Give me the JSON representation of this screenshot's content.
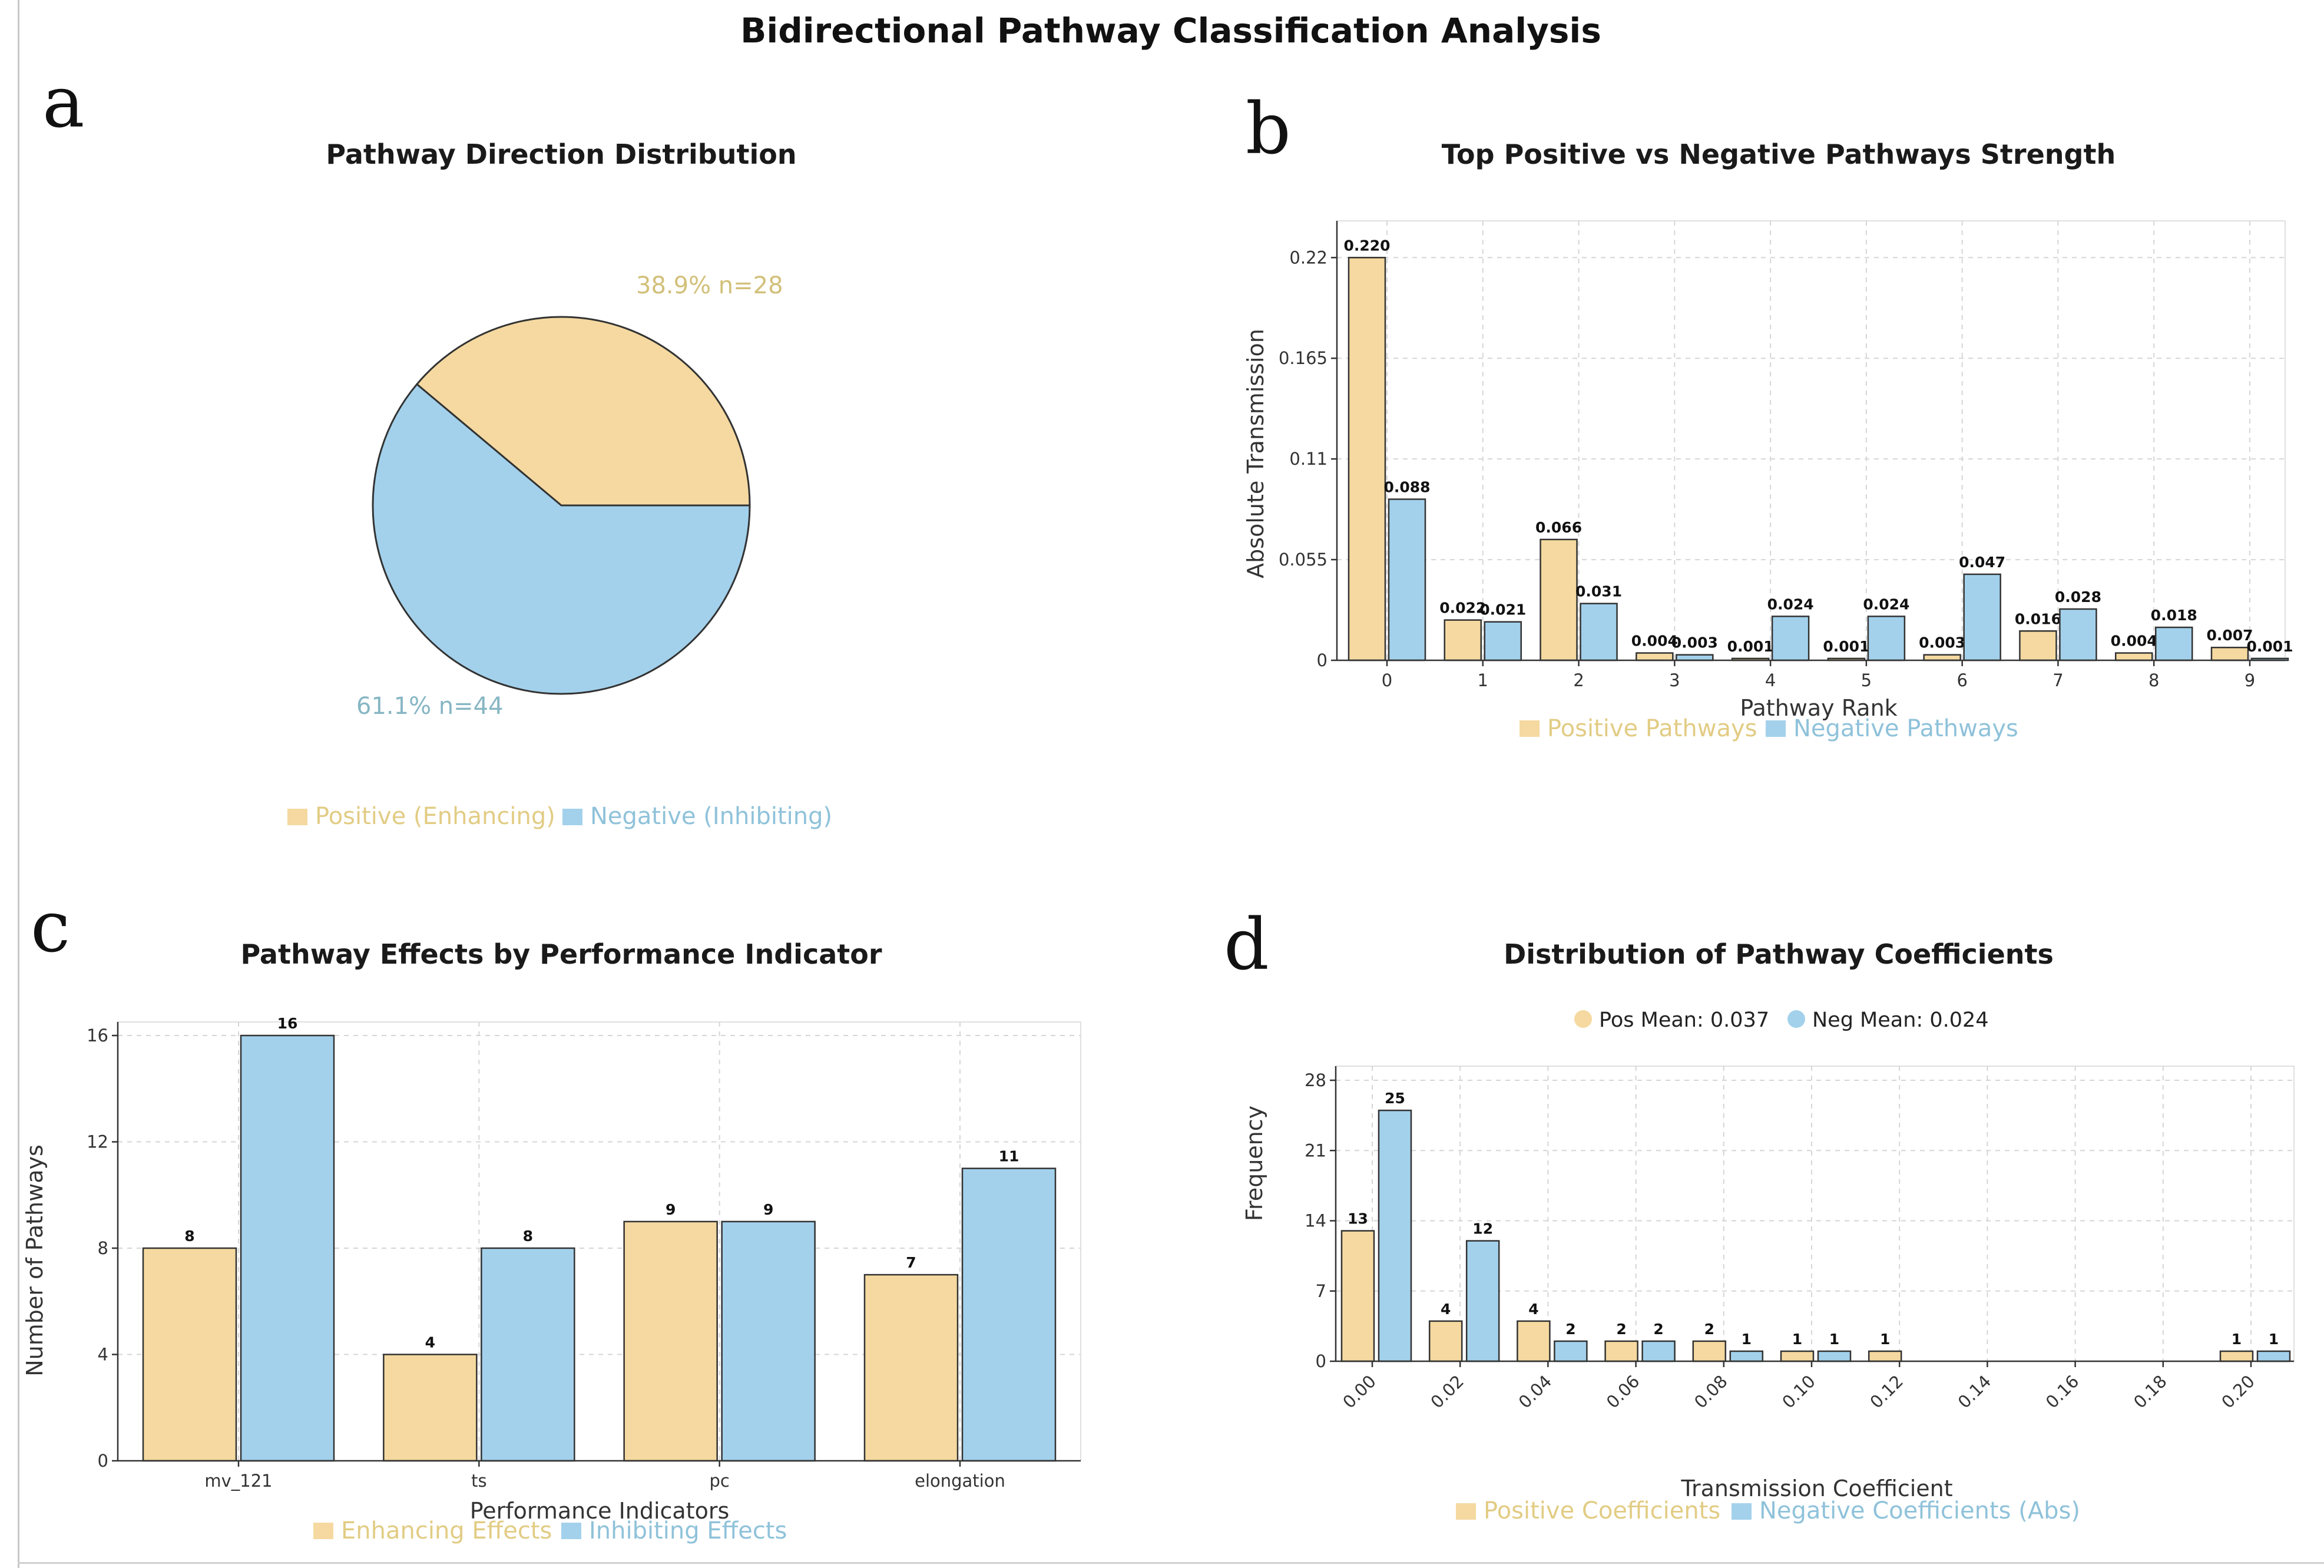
{
  "title": "Bidirectional Pathway Classification Analysis",
  "colors": {
    "positive": "#f5d9a0",
    "negative": "#a3d1ec",
    "edge": "#333333"
  },
  "chart_data": [
    {
      "panel": "a",
      "type": "pie",
      "title": "Pathway Direction Distribution",
      "slices": [
        {
          "name": "Positive (Enhancing)",
          "value": 28,
          "percent": 38.9,
          "label": "38.9% n=28"
        },
        {
          "name": "Negative (Inhibiting)",
          "value": 44,
          "percent": 61.1,
          "label": "61.1% n=44"
        }
      ],
      "legend": [
        "Positive (Enhancing)",
        "Negative (Inhibiting)"
      ]
    },
    {
      "panel": "b",
      "type": "bar",
      "title": "Top Positive vs Negative Pathways Strength",
      "xlabel": "Pathway Rank",
      "ylabel": "Absolute Transmission",
      "categories": [
        "0",
        "1",
        "2",
        "3",
        "4",
        "5",
        "6",
        "7",
        "8",
        "9"
      ],
      "yticks": [
        "0",
        "0.055",
        "0.11",
        "0.165",
        "0.22"
      ],
      "ylim": [
        0,
        0.232
      ],
      "series": [
        {
          "name": "Positive Pathways",
          "values": [
            0.22,
            0.022,
            0.066,
            0.004,
            0.001,
            0.001,
            0.003,
            0.016,
            0.004,
            0.007
          ],
          "labels": [
            "0.220",
            "0.022",
            "0.066",
            "0.004",
            "0.001",
            "0.001",
            "0.003",
            "0.016",
            "0.004",
            "0.007"
          ]
        },
        {
          "name": "Negative Pathways",
          "values": [
            0.088,
            0.021,
            0.031,
            0.003,
            0.024,
            0.024,
            0.047,
            0.028,
            0.018,
            0.001
          ],
          "labels": [
            "0.088",
            "0.021",
            "0.031",
            "0.003",
            "0.024",
            "0.024",
            "0.047",
            "0.028",
            "0.018",
            "0.001"
          ]
        }
      ]
    },
    {
      "panel": "c",
      "type": "bar",
      "title": "Pathway Effects by Performance Indicator",
      "xlabel": "Performance Indicators",
      "ylabel": "Number of Pathways",
      "categories": [
        "mv_121",
        "ts",
        "pc",
        "elongation"
      ],
      "yticks": [
        "0",
        "4",
        "8",
        "12",
        "16"
      ],
      "ylim": [
        0,
        16
      ],
      "series": [
        {
          "name": "Enhancing Effects",
          "values": [
            8,
            4,
            9,
            7
          ],
          "labels": [
            "8",
            "4",
            "9",
            "7"
          ]
        },
        {
          "name": "Inhibiting Effects",
          "values": [
            16,
            8,
            9,
            11
          ],
          "labels": [
            "16",
            "8",
            "9",
            "11"
          ]
        }
      ]
    },
    {
      "panel": "d",
      "type": "bar",
      "title": "Distribution of Pathway Coefficients",
      "xlabel": "Transmission Coefficient",
      "ylabel": "Frequency",
      "mean_labels": [
        "Pos Mean: 0.037",
        "Neg Mean: 0.024"
      ],
      "categories": [
        "0.00",
        "0.02",
        "0.04",
        "0.06",
        "0.08",
        "0.10",
        "0.12",
        "0.14",
        "0.16",
        "0.18",
        "0.20"
      ],
      "bin_edges": [
        0.0,
        0.02,
        0.04,
        0.06,
        0.08,
        0.1,
        0.12,
        0.14,
        0.16,
        0.18,
        0.2
      ],
      "yticks": [
        "0",
        "7",
        "14",
        "21",
        "28"
      ],
      "ylim": [
        0,
        28
      ],
      "xlim": [
        0.0,
        0.21
      ],
      "series": [
        {
          "name": "Positive Coefficients",
          "values": [
            13,
            4,
            4,
            2,
            2,
            1,
            1,
            0,
            0,
            0,
            1
          ],
          "labels": [
            "13",
            "4",
            "4",
            "2",
            "2",
            "1",
            "1",
            "",
            "",
            "",
            "1"
          ]
        },
        {
          "name": "Negative Coefficients (Abs)",
          "values": [
            25,
            12,
            2,
            2,
            1,
            1,
            0,
            0,
            0,
            0,
            1
          ],
          "labels": [
            "25",
            "12",
            "2",
            "2",
            "1",
            "1",
            "",
            "",
            "",
            "",
            "1"
          ]
        }
      ]
    }
  ]
}
